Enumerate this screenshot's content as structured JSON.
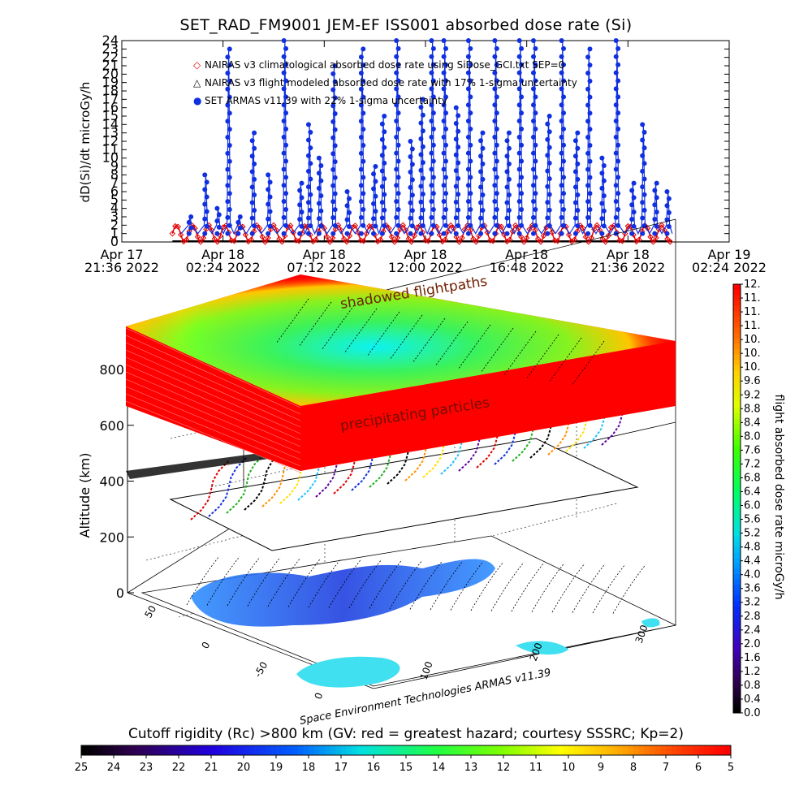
{
  "title": "SET_RAD_FM9001  JEM-EF ISS001 absorbed dose rate (Si)",
  "top_chart": {
    "ylabel": "dD(Si)/dt microGy/h",
    "yticks": [
      "0",
      "1",
      "2",
      "3",
      "4",
      "5",
      "6",
      "7",
      "8",
      "9",
      "10",
      "11",
      "12",
      "13",
      "14",
      "15",
      "16",
      "17",
      "18",
      "19",
      "20",
      "21",
      "22",
      "23",
      "24"
    ],
    "xticks": [
      {
        "date": "Apr 17",
        "time": "21:36 2022"
      },
      {
        "date": "Apr 18",
        "time": "02:24 2022"
      },
      {
        "date": "Apr 18",
        "time": "07:12 2022"
      },
      {
        "date": "Apr 18",
        "time": "12:00 2022"
      },
      {
        "date": "Apr 18",
        "time": "16:48 2022"
      },
      {
        "date": "Apr 18",
        "time": "21:36 2022"
      },
      {
        "date": "Apr 19",
        "time": "02:24 2022"
      }
    ],
    "legend": [
      {
        "symbol": "◇",
        "color": "#e00000",
        "label": "NAIRAS v3 climatological absorbed dose rate using SiDose_GCI.txt SEP=0"
      },
      {
        "symbol": "△",
        "color": "#000000",
        "label": "NAIRAS v3 flight modeled absorbed dose rate with 17% 1-sigma uncertainty"
      },
      {
        "symbol": "●",
        "color": "#1030e0",
        "label": "SET ARMAS v11.39 with 22% 1-sigma uncertainty"
      }
    ]
  },
  "chart_data": [
    {
      "type": "scatter",
      "title": "SET_RAD_FM9001  JEM-EF ISS001 absorbed dose rate (Si)",
      "xlabel": "",
      "ylabel": "dD(Si)/dt microGy/h",
      "xlim": [
        "Apr 17 21:36 2022",
        "Apr 19 02:24 2022"
      ],
      "ylim": [
        0,
        24
      ],
      "grid": false,
      "legend_position": "top-left",
      "x_start": "Apr 18 00:00 2022",
      "x_end": "Apr 18 23:42 2022",
      "series": [
        {
          "name": "SET ARMAS v11.39 with 22% 1-sigma uncertainty",
          "color": "#1030e0",
          "peaks": [
            {
              "x": "Apr 18 00:50 2022",
              "y": 3
            },
            {
              "x": "Apr 18 01:35 2022",
              "y": 8
            },
            {
              "x": "Apr 18 02:10 2022",
              "y": 4
            },
            {
              "x": "Apr 18 02:40 2022",
              "y": 23
            },
            {
              "x": "Apr 18 03:10 2022",
              "y": 3
            },
            {
              "x": "Apr 18 03:50 2022",
              "y": 13
            },
            {
              "x": "Apr 18 04:35 2022",
              "y": 8
            },
            {
              "x": "Apr 18 05:20 2022",
              "y": 24
            },
            {
              "x": "Apr 18 06:05 2022",
              "y": 7
            },
            {
              "x": "Apr 18 06:30 2022",
              "y": 14
            },
            {
              "x": "Apr 18 07:00 2022",
              "y": 10
            },
            {
              "x": "Apr 18 07:40 2022",
              "y": 21
            },
            {
              "x": "Apr 18 08:20 2022",
              "y": 6
            },
            {
              "x": "Apr 18 09:00 2022",
              "y": 23
            },
            {
              "x": "Apr 18 09:35 2022",
              "y": 9
            },
            {
              "x": "Apr 18 10:00 2022",
              "y": 15
            },
            {
              "x": "Apr 18 10:40 2022",
              "y": 24
            },
            {
              "x": "Apr 18 11:20 2022",
              "y": 12
            },
            {
              "x": "Apr 18 11:50 2022",
              "y": 17
            },
            {
              "x": "Apr 18 12:20 2022",
              "y": 24
            },
            {
              "x": "Apr 18 12:55 2022",
              "y": 24
            },
            {
              "x": "Apr 18 13:30 2022",
              "y": 16
            },
            {
              "x": "Apr 18 14:05 2022",
              "y": 24
            },
            {
              "x": "Apr 18 14:40 2022",
              "y": 13
            },
            {
              "x": "Apr 18 15:20 2022",
              "y": 24
            },
            {
              "x": "Apr 18 15:55 2022",
              "y": 13
            },
            {
              "x": "Apr 18 16:30 2022",
              "y": 24
            },
            {
              "x": "Apr 18 17:10 2022",
              "y": 24
            },
            {
              "x": "Apr 18 17:50 2022",
              "y": 15
            },
            {
              "x": "Apr 18 18:30 2022",
              "y": 24
            },
            {
              "x": "Apr 18 19:10 2022",
              "y": 13
            },
            {
              "x": "Apr 18 19:45 2022",
              "y": 23
            },
            {
              "x": "Apr 18 20:25 2022",
              "y": 10
            },
            {
              "x": "Apr 18 21:05 2022",
              "y": 24
            },
            {
              "x": "Apr 18 21:50 2022",
              "y": 7
            },
            {
              "x": "Apr 18 22:20 2022",
              "y": 14
            },
            {
              "x": "Apr 18 22:55 2022",
              "y": 7
            },
            {
              "x": "Apr 18 23:30 2022",
              "y": 6
            }
          ],
          "baseline": 1
        },
        {
          "name": "NAIRAS v3 climatological absorbed dose rate using SiDose_GCI.txt SEP=0",
          "color": "#e00000",
          "pattern": "periodic",
          "min": 0,
          "max": 2,
          "period_minutes": 46
        },
        {
          "name": "NAIRAS v3 flight modeled absorbed dose rate with 17% 1-sigma uncertainty",
          "color": "#000000",
          "pattern": "flat",
          "value": 0
        }
      ]
    },
    {
      "type": "heatmap",
      "title": "",
      "zlabel": "Altitude (km)",
      "zticks": [
        0,
        200,
        400,
        600,
        800
      ],
      "lat_ticks": [
        50,
        0,
        -50
      ],
      "lon_ticks": [
        0,
        100,
        200,
        300
      ],
      "colorbar_label": "flight absorbed dose rate microGy/h",
      "colorbar_ticks": [
        "0.0",
        "0.4",
        "0.8",
        "1.2",
        "1.6",
        "2.0",
        "2.4",
        "2.8",
        "3.2",
        "3.6",
        "4.0",
        "4.4",
        "4.8",
        "5.2",
        "5.6",
        "6.0",
        "6.4",
        "6.8",
        "7.2",
        "7.6",
        "8.0",
        "8.4",
        "8.8",
        "9.2",
        "9.6",
        "10.",
        "10.",
        "10.",
        "11.",
        "11.",
        "11.",
        "12."
      ],
      "bottom_colorbar_label": "Cutoff rigidity (Rc) >800 km (GV: red = greatest hazard; courtesy SSSRC; Kp=2)",
      "bottom_colorbar_ticks": [
        "25",
        "24",
        "23",
        "22",
        "21",
        "20",
        "19",
        "18",
        "17",
        "16",
        "15",
        "14",
        "13",
        "12",
        "11",
        "10",
        "9",
        "8",
        "7",
        "6",
        "5"
      ]
    }
  ],
  "panel3d": {
    "label_shadowed": "shadowed flightpaths",
    "label_precip": "precipitating particles",
    "credit": "Space Environment Technologies ARMAS v11.39"
  },
  "bottom": {
    "title": "Cutoff rigidity (Rc) >800 km (GV: red = greatest hazard; courtesy SSSRC; Kp=2)"
  }
}
